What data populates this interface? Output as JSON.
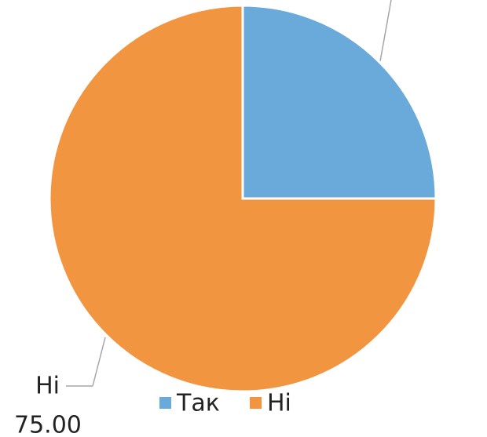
{
  "chart_data": {
    "type": "pie",
    "categories": [
      "Так",
      "Ні"
    ],
    "values": [
      25,
      75
    ],
    "value_labels": [
      null,
      "75.00"
    ],
    "colors": [
      "#6aaadb",
      "#f29540"
    ],
    "legend": "bottom"
  }
}
